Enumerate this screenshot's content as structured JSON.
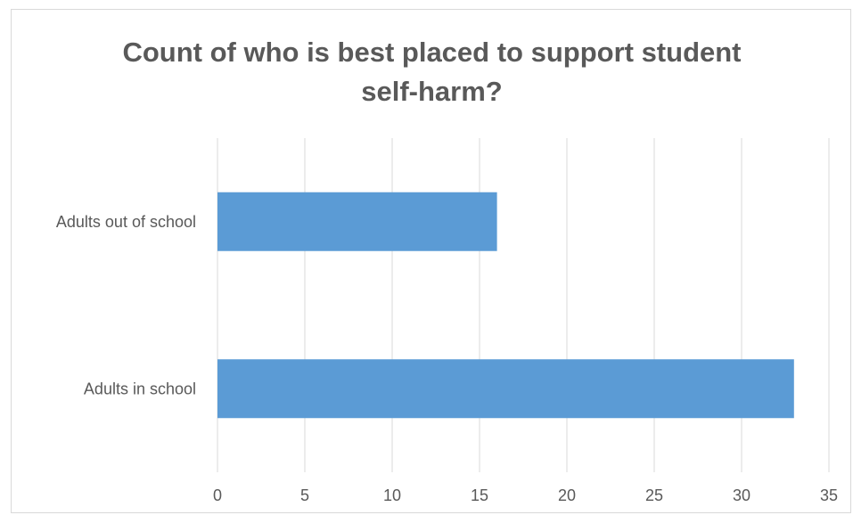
{
  "chart_data": {
    "type": "bar",
    "orientation": "horizontal",
    "title_lines": [
      "Count of who is best placed to support student",
      "self-harm?"
    ],
    "categories": [
      "Adults out of school",
      "Adults in school"
    ],
    "values": [
      16,
      33
    ],
    "xlim": [
      0,
      35
    ],
    "xticks": [
      "0",
      "5",
      "10",
      "15",
      "20",
      "25",
      "30",
      "35"
    ],
    "grid": "vertical",
    "bar_color": "#5b9bd5",
    "gridline_color": "#d9d9d9",
    "legend": "none"
  }
}
